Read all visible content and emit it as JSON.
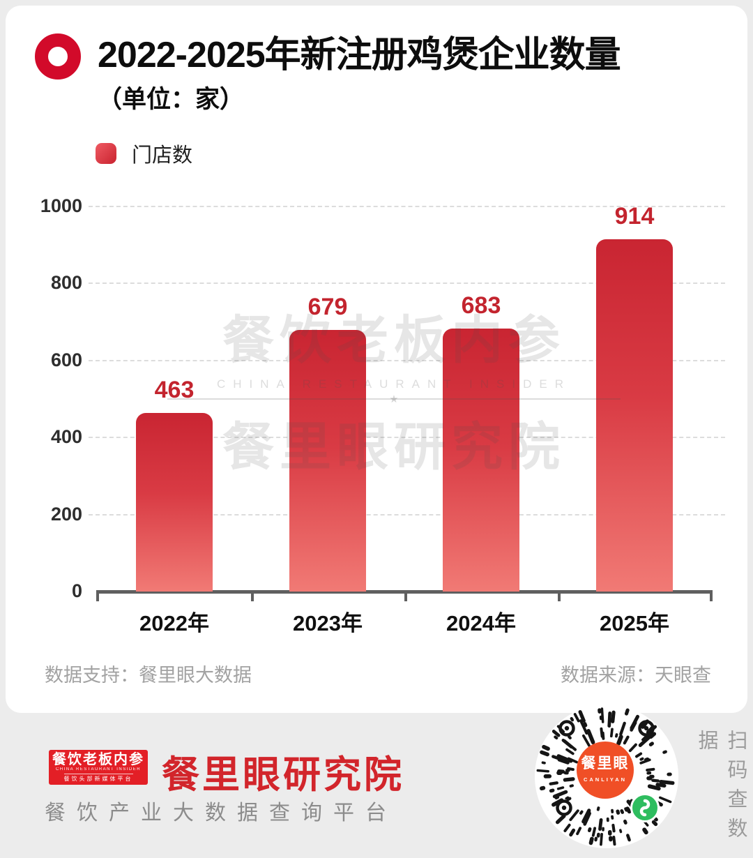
{
  "header": {
    "title": "2022-2025年新注册鸡煲企业数量",
    "subtitle": "（单位：家）"
  },
  "legend": {
    "label": "门店数",
    "color": "#c9232f"
  },
  "chart_data": {
    "type": "bar",
    "title": "2022-2025年新注册鸡煲企业数量",
    "unit": "家",
    "series_name": "门店数",
    "categories": [
      "2022年",
      "2023年",
      "2024年",
      "2025年"
    ],
    "values": [
      463,
      679,
      683,
      914
    ],
    "ylim": [
      0,
      1000
    ],
    "yticks": [
      0,
      200,
      400,
      600,
      800,
      1000
    ],
    "grid": "horizontal-dashed",
    "legend_position": "top-left",
    "bar_color_top": "#c92532",
    "bar_color_bottom": "#f17a75",
    "value_label_color": "#c3242e"
  },
  "watermark": {
    "line1": "餐饮老板内参",
    "line2": "CHINA RESTAURANT INSIDER",
    "star": "★",
    "line3": "餐里眼研究院"
  },
  "sources": {
    "support": "数据支持：餐里眼大数据",
    "source": "数据来源：天眼查"
  },
  "footer": {
    "logo": {
      "line1": "餐饮老板内参",
      "line2": "CHINA RESTAURANT INSIDER",
      "line3": "餐饮头部新媒体平台"
    },
    "brand": "餐里眼研究院",
    "tagline": "餐饮产业大数据查询平台",
    "qr": {
      "center_text": "餐里眼",
      "center_sub": "CANLIYAN"
    },
    "scan_hint": "扫码查数据"
  },
  "colors": {
    "accent_red": "#d20a2a",
    "logo_red": "#e31f26",
    "brand_red": "#d2252b",
    "qr_orange": "#f04f26",
    "miniapp_green": "#2ebd5f",
    "page_bg": "#ececec",
    "card_bg": "#ffffff",
    "axis_gray": "#5f5f5f",
    "muted_text": "#a2a2a2"
  }
}
